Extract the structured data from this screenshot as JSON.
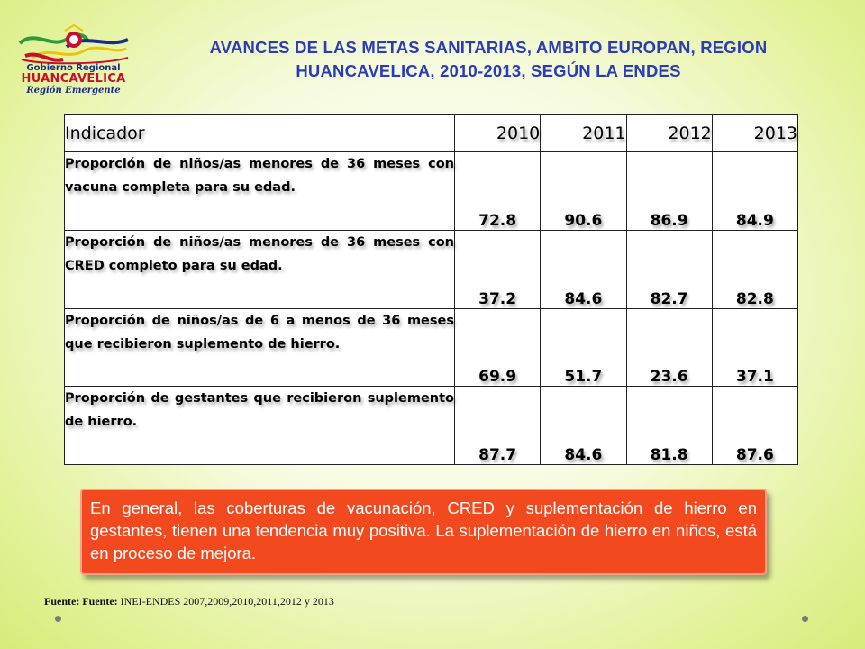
{
  "logo": {
    "line1": "Gobierno Regional",
    "line2": "HUANCAVELICA",
    "line3": "Región Emergente",
    "colors": {
      "blue": "#1c2b8a",
      "red": "#c8102e",
      "green": "#2e9a3a",
      "yellow": "#f2c200"
    }
  },
  "title": "AVANCES DE LAS METAS SANITARIAS, AMBITO EUROPAN, REGION HUANCAVELICA, 2010-2013, SEGÚN LA ENDES",
  "table": {
    "header": {
      "indicator": "Indicador",
      "years": [
        "2010",
        "2011",
        "2012",
        "2013"
      ]
    },
    "rows": [
      {
        "indicator": "Proporción de niños/as menores de 36 meses con vacuna completa para su edad.",
        "values": [
          "72.8",
          "90.6",
          "86.9",
          "84.9"
        ]
      },
      {
        "indicator": "Proporción de niños/as menores de 36 meses con CRED completo para su edad.",
        "values": [
          "37.2",
          "84.6",
          "82.7",
          "82.8"
        ]
      },
      {
        "indicator": "Proporción de niños/as de 6 a menos de 36 meses que recibieron suplemento de hierro.",
        "values": [
          "69.9",
          "51.7",
          "23.6",
          "37.1"
        ]
      },
      {
        "indicator": "Proporción de gestantes que recibieron suplemento de hierro.",
        "values": [
          "87.7",
          "84.6",
          "81.8",
          "87.6"
        ]
      }
    ]
  },
  "note": "En general, las coberturas de vacunación, CRED y suplementación de hierro en gestantes, tienen una tendencia muy positiva. La suplementación de hierro en niños, está en proceso de mejora.",
  "source": {
    "label": "Fuente: Fuente:",
    "text": "INEI-ENDES 2007,2009,2010,2011,2012 y 2013"
  },
  "colors": {
    "title": "#2a3cb8",
    "note_bg": "#f2491e",
    "background": "#e3f29a"
  }
}
